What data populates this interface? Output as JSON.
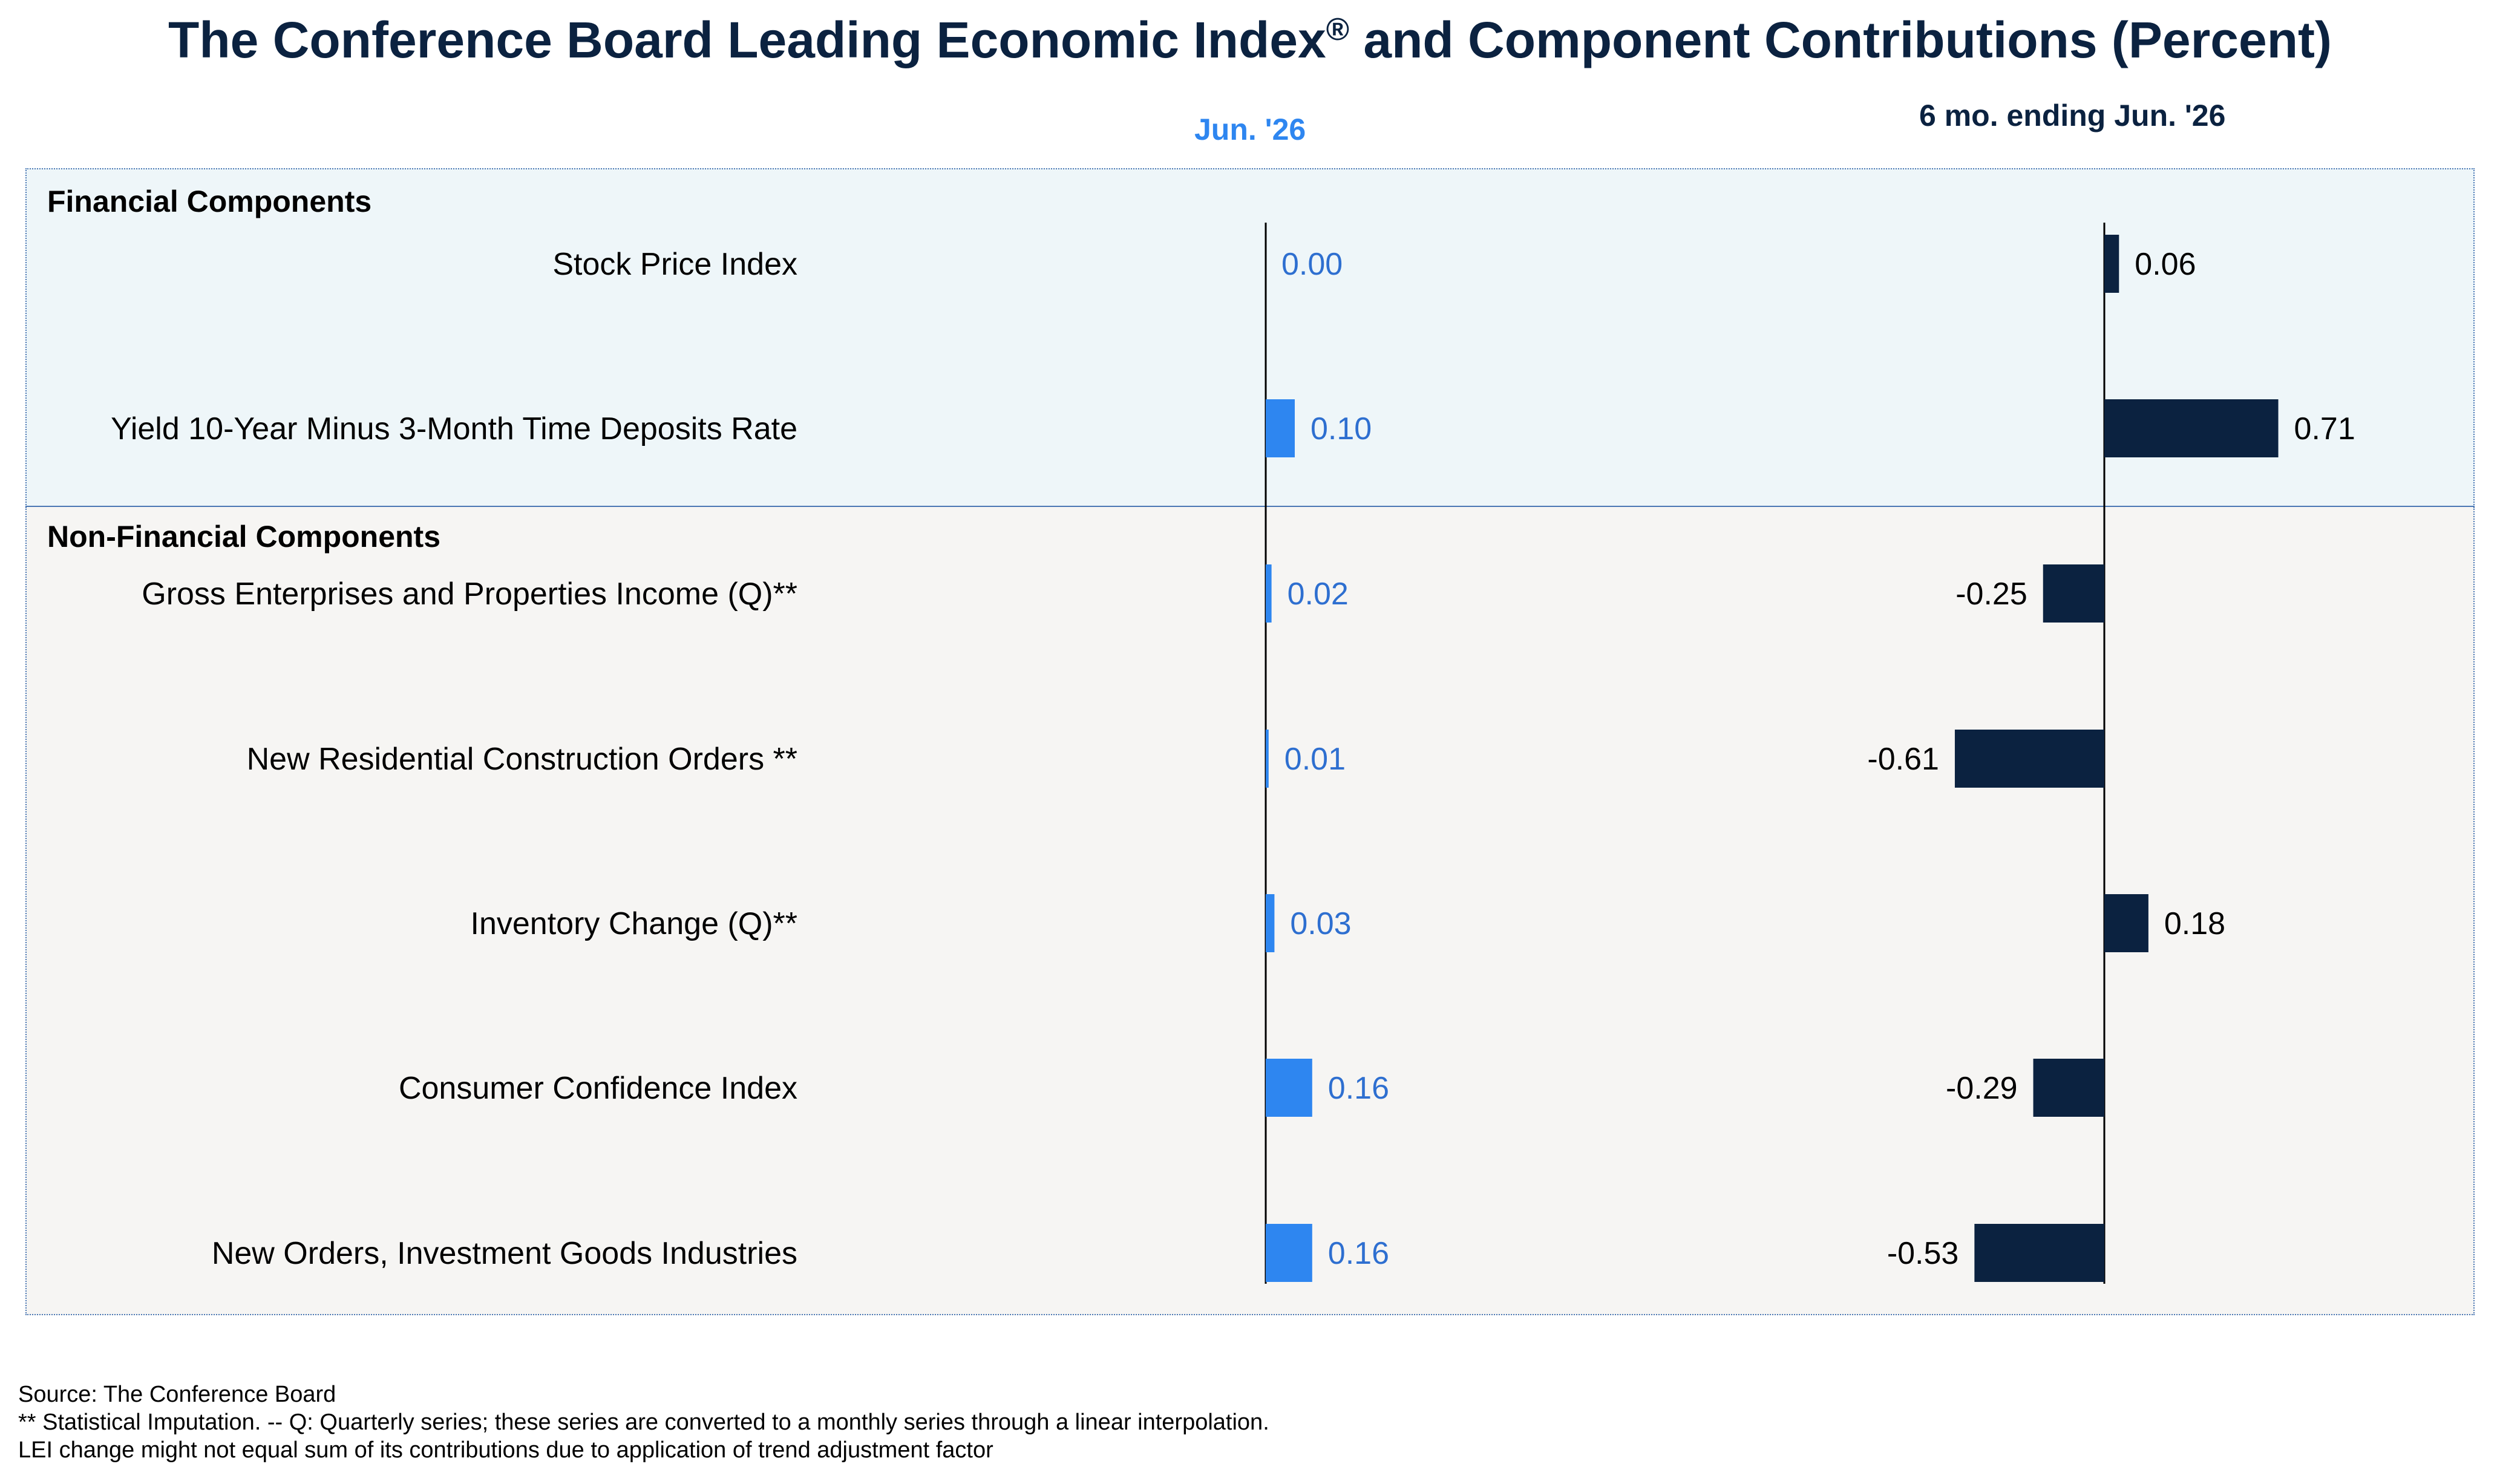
{
  "title": "The Conference Board Leading Economic Index",
  "title_mark": "®",
  "title_suffix": " and Component Contributions (Percent)",
  "columns": {
    "month": "Jun. '26",
    "six_month": "6 mo. ending Jun. '26"
  },
  "colors": {
    "title": "#0b2240",
    "month_bar": "#2e86f0",
    "month_text": "#2e6fd0",
    "six_month_bar": "#0b2240",
    "financial_bg": "#eef6f9",
    "nonfinancial_bg": "#f6f5f3",
    "border": "#4a77b4"
  },
  "sections": {
    "financial": "Financial Components",
    "nonfinancial": "Non-Financial Components"
  },
  "chart_data": {
    "type": "bar",
    "orientation": "horizontal",
    "title": "The Conference Board Leading Economic Index® and Component Contributions (Percent)",
    "categories": [
      "Stock Price Index",
      "Yield 10-Year Minus 3-Month Time Deposits Rate",
      "Gross Enterprises and Properties Income (Q)**",
      "New Residential Construction Orders **",
      "Inventory Change (Q)**",
      "Consumer Confidence Index",
      "New Orders, Investment Goods Industries"
    ],
    "groups": [
      "financial",
      "financial",
      "nonfinancial",
      "nonfinancial",
      "nonfinancial",
      "nonfinancial",
      "nonfinancial"
    ],
    "series": [
      {
        "name": "Jun. '26",
        "values": [
          0.0,
          0.1,
          0.02,
          0.01,
          0.03,
          0.16,
          0.16
        ],
        "labels": [
          "0.00",
          "0.10",
          "0.02",
          "0.01",
          "0.03",
          "0.16",
          "0.16"
        ]
      },
      {
        "name": "6 mo. ending Jun. '26",
        "values": [
          0.06,
          0.71,
          -0.25,
          -0.61,
          0.18,
          -0.29,
          -0.53
        ],
        "labels": [
          "0.06",
          "0.71",
          "-0.25",
          "-0.61",
          "0.18",
          "-0.29",
          "-0.53"
        ]
      }
    ]
  },
  "footer": {
    "source": "Source: The Conference Board",
    "note1": "**  Statistical Imputation. -- Q: Quarterly series; these series are converted to a monthly series through a linear interpolation.",
    "note2": "LEI change might not equal sum of its contributions due to application of trend adjustment factor"
  }
}
